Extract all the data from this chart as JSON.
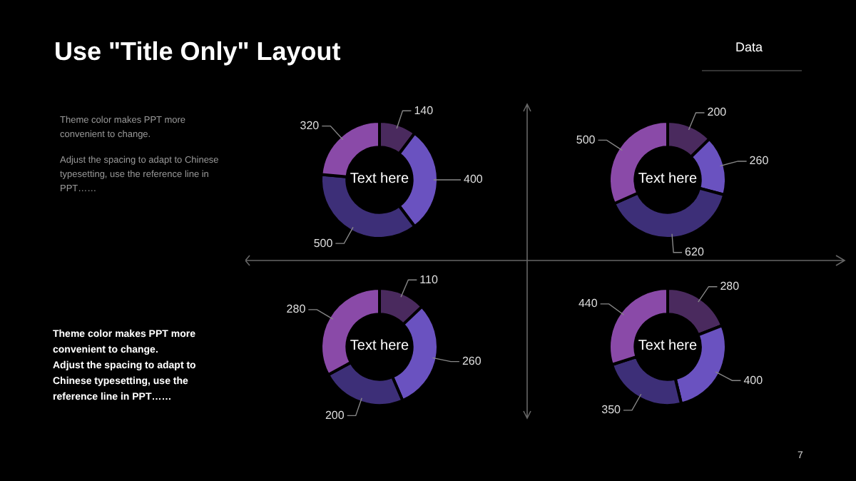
{
  "chart_data": [
    {
      "type": "donut",
      "categories": [
        null,
        null,
        null,
        null
      ],
      "values": [
        140,
        400,
        500,
        320
      ],
      "colors": [
        "#4a2a5e",
        "#6a52c0",
        "#3d2f78",
        "#8a4aa8"
      ],
      "data_labels": true,
      "annotations": [
        "Text here"
      ]
    },
    {
      "type": "donut",
      "categories": [
        null,
        null,
        null,
        null
      ],
      "values": [
        200,
        260,
        620,
        500
      ],
      "colors": [
        "#4a2a5e",
        "#6a52c0",
        "#3d2f78",
        "#8a4aa8"
      ],
      "data_labels": true,
      "annotations": [
        "Text here"
      ]
    },
    {
      "type": "donut",
      "categories": [
        null,
        null,
        null,
        null
      ],
      "values": [
        110,
        260,
        200,
        280
      ],
      "colors": [
        "#4a2a5e",
        "#6a52c0",
        "#3d2f78",
        "#8a4aa8"
      ],
      "data_labels": true,
      "annotations": [
        "Text here"
      ]
    },
    {
      "type": "donut",
      "categories": [
        null,
        null,
        null,
        null
      ],
      "values": [
        280,
        400,
        350,
        440
      ],
      "colors": [
        "#4a2a5e",
        "#6a52c0",
        "#3d2f78",
        "#8a4aa8"
      ],
      "data_labels": true,
      "annotations": [
        "Text here"
      ]
    },
    {
      "type": "other",
      "title": "Use \"Title Only\" Layout",
      "annotations": [
        "Data",
        "Theme color makes PPT more convenient to change.",
        "Adjust the spacing to adapt to Chinese typesetting, use the reference line in PPT……",
        "Theme color makes PPT more convenient to change.",
        "Adjust the spacing to adapt to Chinese typesetting, use the reference line in PPT……",
        "7"
      ]
    }
  ]
}
